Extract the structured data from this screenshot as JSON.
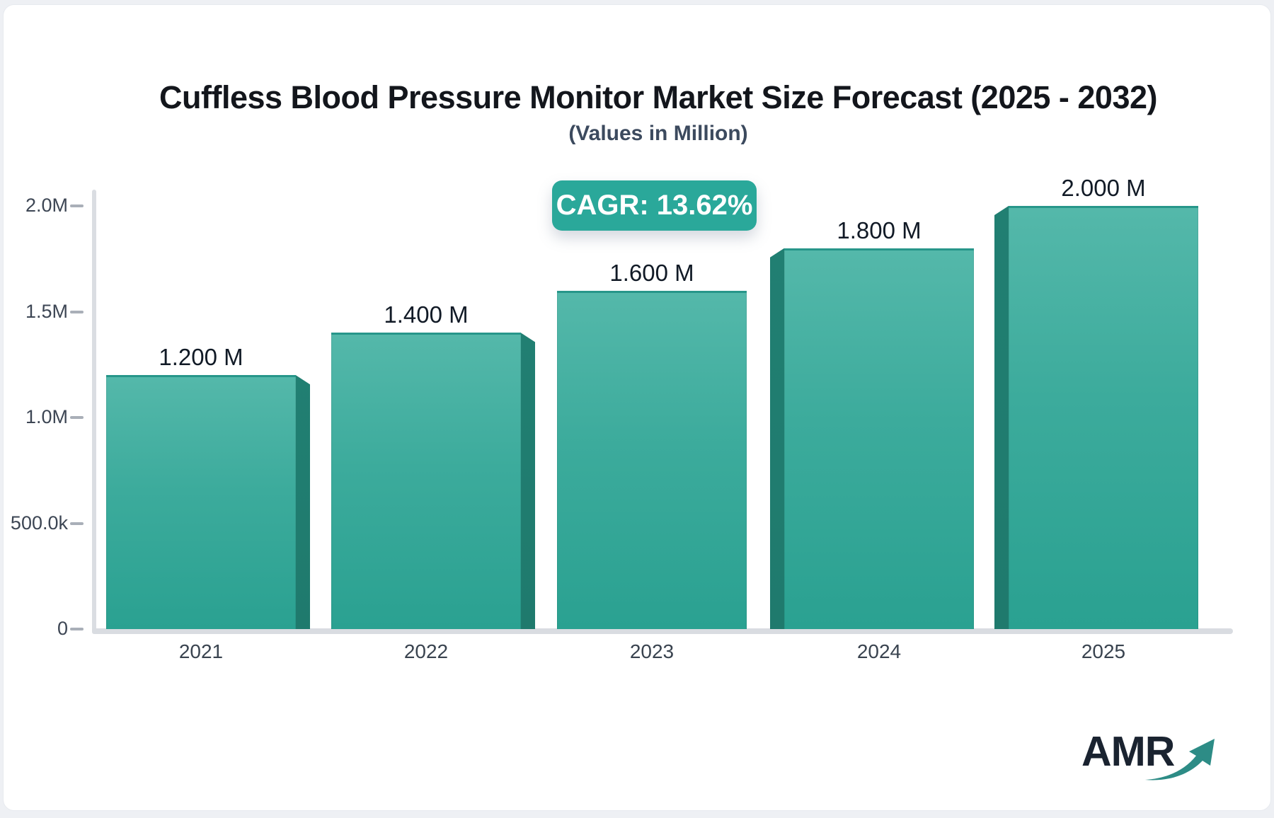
{
  "header": {
    "title": "Cuffless Blood Pressure Monitor Market Size Forecast (2025 - 2032)",
    "subtitle": "(Values in Million)"
  },
  "badge": {
    "label": "CAGR: 13.62%",
    "bg_color": "#2aa89a",
    "text_color": "#ffffff"
  },
  "chart_data": {
    "type": "bar",
    "title": "Cuffless Blood Pressure Monitor Market Size Forecast (2025 - 2032)",
    "subtitle": "(Values in Million)",
    "categories": [
      "2021",
      "2022",
      "2023",
      "2024",
      "2025"
    ],
    "values": [
      1200000,
      1400000,
      1600000,
      1800000,
      2000000
    ],
    "bar_labels": [
      "1.200 M",
      "1.400 M",
      "1.600 M",
      "1.800 M",
      "2.000 M"
    ],
    "annotation": "CAGR: 13.62%",
    "xlabel": "",
    "ylabel": "",
    "ylim": [
      0,
      2000000
    ],
    "y_ticks": [
      {
        "value": 0,
        "label": "0"
      },
      {
        "value": 500000,
        "label": "500.0k"
      },
      {
        "value": 1000000,
        "label": "1.0M"
      },
      {
        "value": 1500000,
        "label": "1.5M"
      },
      {
        "value": 2000000,
        "label": "2.0M"
      }
    ],
    "grid": false,
    "legend": "none",
    "colors": {
      "bar_face_top": "#54b8aa",
      "bar_face_bottom": "#2aa191",
      "bar_side_face": "#1f7a6d",
      "bar_top_edge": "#27968a",
      "axis_line": "#d9dce1",
      "tick": "#a9afb8",
      "value_label": "#111a26"
    }
  },
  "logo": {
    "text": "AMR",
    "text_color": "#1a2330",
    "arrow_color": "#2d8c86"
  }
}
